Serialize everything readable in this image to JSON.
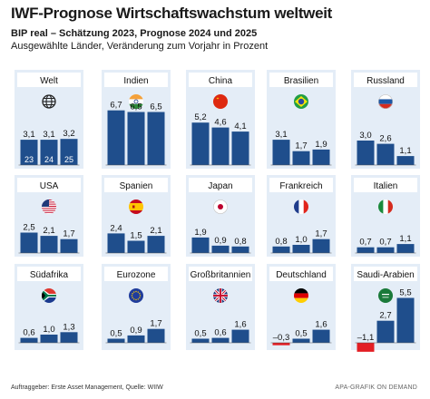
{
  "title": "IWF-Prognose Wirtschaftswachstum weltweit",
  "subtitle": "BIP real  – Schätzung 2023, Prognose 2024 und 2025",
  "subtitle2": "Ausgewählte Länder, Veränderung zum Vorjahr in Prozent",
  "footer_left": "Auftraggeber: Erste Asset Management, Quelle: WIIW",
  "footer_right": "APA-GRAFIK ON DEMAND",
  "colors": {
    "bar": "#1f4e8c",
    "negative": "#e31e24",
    "panel": "#e4edf7",
    "label_box": "#ffffff"
  },
  "chart_data": {
    "type": "bar",
    "title": "IWF-Prognose Wirtschaftswachstum weltweit",
    "categories": [
      "23",
      "24",
      "25"
    ],
    "panels": [
      {
        "name": "Welt",
        "icon": "globe-icon",
        "values": [
          3.1,
          3.1,
          3.2
        ],
        "labels": [
          "3,1",
          "3,1",
          "3,2"
        ],
        "bar_labels": [
          "23",
          "24",
          "25"
        ]
      },
      {
        "name": "Indien",
        "icon": "flag-india-icon",
        "values": [
          6.7,
          6.5,
          6.5
        ],
        "labels": [
          "6,7",
          "6,5",
          "6,5"
        ]
      },
      {
        "name": "China",
        "icon": "flag-china-icon",
        "values": [
          5.2,
          4.6,
          4.1
        ],
        "labels": [
          "5,2",
          "4,6",
          "4,1"
        ]
      },
      {
        "name": "Brasilien",
        "icon": "flag-brazil-icon",
        "values": [
          3.1,
          1.7,
          1.9
        ],
        "labels": [
          "3,1",
          "1,7",
          "1,9"
        ]
      },
      {
        "name": "Russland",
        "icon": "flag-russia-icon",
        "values": [
          3.0,
          2.6,
          1.1
        ],
        "labels": [
          "3,0",
          "2,6",
          "1,1"
        ]
      },
      {
        "name": "USA",
        "icon": "flag-usa-icon",
        "values": [
          2.5,
          2.1,
          1.7
        ],
        "labels": [
          "2,5",
          "2,1",
          "1,7"
        ]
      },
      {
        "name": "Spanien",
        "icon": "flag-spain-icon",
        "values": [
          2.4,
          1.5,
          2.1
        ],
        "labels": [
          "2,4",
          "1,5",
          "2,1"
        ]
      },
      {
        "name": "Japan",
        "icon": "flag-japan-icon",
        "values": [
          1.9,
          0.9,
          0.8
        ],
        "labels": [
          "1,9",
          "0,9",
          "0,8"
        ]
      },
      {
        "name": "Frankreich",
        "icon": "flag-france-icon",
        "values": [
          0.8,
          1.0,
          1.7
        ],
        "labels": [
          "0,8",
          "1,0",
          "1,7"
        ]
      },
      {
        "name": "Italien",
        "icon": "flag-italy-icon",
        "values": [
          0.7,
          0.7,
          1.1
        ],
        "labels": [
          "0,7",
          "0,7",
          "1,1"
        ]
      },
      {
        "name": "Südafrika",
        "icon": "flag-south-africa-icon",
        "values": [
          0.6,
          1.0,
          1.3
        ],
        "labels": [
          "0,6",
          "1,0",
          "1,3"
        ]
      },
      {
        "name": "Eurozone",
        "icon": "flag-eu-icon",
        "values": [
          0.5,
          0.9,
          1.7
        ],
        "labels": [
          "0,5",
          "0,9",
          "1,7"
        ]
      },
      {
        "name": "Großbritannien",
        "icon": "flag-uk-icon",
        "values": [
          0.5,
          0.6,
          1.6
        ],
        "labels": [
          "0,5",
          "0,6",
          "1,6"
        ]
      },
      {
        "name": "Deutschland",
        "icon": "flag-germany-icon",
        "values": [
          -0.3,
          0.5,
          1.6
        ],
        "labels": [
          "–0,3",
          "0,5",
          "1,6"
        ]
      },
      {
        "name": "Saudi-Arabien",
        "icon": "flag-saudi-arabia-icon",
        "values": [
          -1.1,
          2.7,
          5.5
        ],
        "labels": [
          "–1,1",
          "2,7",
          "5,5"
        ]
      }
    ]
  }
}
